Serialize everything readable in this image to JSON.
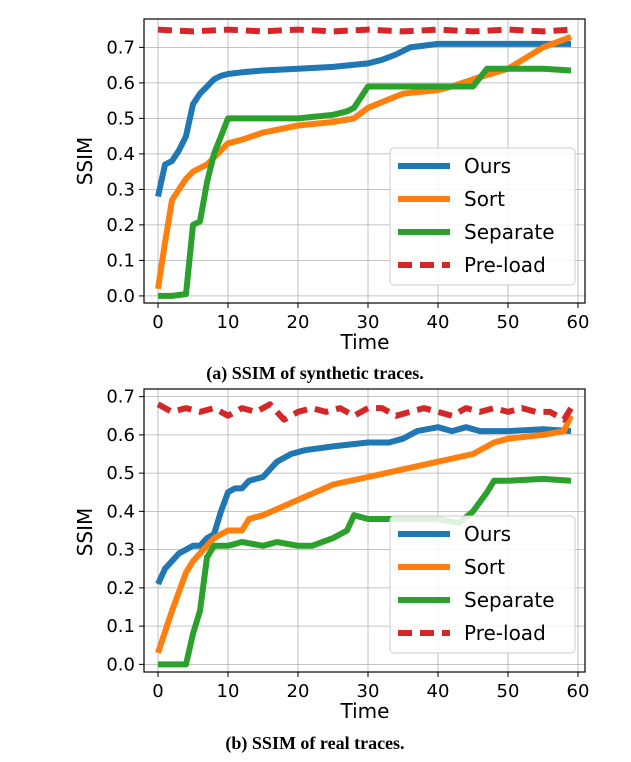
{
  "colors": {
    "ours": "#1f77b4",
    "sort": "#ff7f0e",
    "separate": "#2ca02c",
    "preload": "#d62728",
    "grid": "#b0b0b0"
  },
  "chart_data": [
    {
      "type": "line",
      "caption": "(a) SSIM of synthetic traces.",
      "xlabel": "Time",
      "ylabel": "SSIM",
      "xlim": [
        -2,
        61
      ],
      "ylim": [
        -0.02,
        0.78
      ],
      "xticks": [
        0,
        10,
        20,
        30,
        40,
        50,
        60
      ],
      "yticks": [
        0.0,
        0.1,
        0.2,
        0.3,
        0.4,
        0.5,
        0.6,
        0.7
      ],
      "xtick_labels": [
        "0",
        "10",
        "20",
        "30",
        "40",
        "50",
        "60"
      ],
      "ytick_labels": [
        "0.0",
        "0.1",
        "0.2",
        "0.3",
        "0.4",
        "0.5",
        "0.6",
        "0.7"
      ],
      "grid": true,
      "legend_position": "lower-right",
      "series": [
        {
          "name": "Ours",
          "style": "solid",
          "x": [
            0,
            1,
            2,
            3,
            4,
            5,
            6,
            7,
            8,
            9,
            10,
            12,
            15,
            20,
            25,
            30,
            32,
            34,
            36,
            38,
            40,
            45,
            50,
            55,
            59
          ],
          "values": [
            0.28,
            0.37,
            0.38,
            0.41,
            0.45,
            0.54,
            0.57,
            0.59,
            0.61,
            0.62,
            0.625,
            0.63,
            0.635,
            0.64,
            0.645,
            0.655,
            0.665,
            0.68,
            0.7,
            0.705,
            0.71,
            0.71,
            0.71,
            0.71,
            0.71
          ]
        },
        {
          "name": "Sort",
          "style": "solid",
          "x": [
            0,
            1,
            2,
            3,
            4,
            5,
            6,
            7,
            8,
            9,
            10,
            12,
            15,
            20,
            25,
            28,
            30,
            35,
            40,
            42,
            45,
            50,
            55,
            59
          ],
          "values": [
            0.02,
            0.15,
            0.27,
            0.3,
            0.33,
            0.35,
            0.36,
            0.37,
            0.39,
            0.41,
            0.43,
            0.44,
            0.46,
            0.48,
            0.49,
            0.5,
            0.53,
            0.57,
            0.58,
            0.59,
            0.61,
            0.64,
            0.7,
            0.73
          ]
        },
        {
          "name": "Separate",
          "style": "solid",
          "x": [
            0,
            2,
            4,
            5,
            6,
            7,
            8,
            9,
            10,
            15,
            20,
            25,
            27,
            28,
            30,
            35,
            40,
            45,
            47,
            50,
            55,
            59
          ],
          "values": [
            0.0,
            0.0,
            0.005,
            0.2,
            0.21,
            0.32,
            0.4,
            0.45,
            0.5,
            0.5,
            0.5,
            0.51,
            0.52,
            0.53,
            0.59,
            0.59,
            0.59,
            0.59,
            0.64,
            0.64,
            0.64,
            0.635
          ]
        },
        {
          "name": "Pre-load",
          "style": "dashed",
          "x": [
            0,
            5,
            10,
            15,
            20,
            25,
            30,
            35,
            40,
            45,
            50,
            55,
            59
          ],
          "values": [
            0.75,
            0.745,
            0.75,
            0.745,
            0.75,
            0.745,
            0.75,
            0.745,
            0.75,
            0.745,
            0.75,
            0.745,
            0.75
          ]
        }
      ]
    },
    {
      "type": "line",
      "caption": "(b) SSIM of real traces.",
      "xlabel": "Time",
      "ylabel": "SSIM",
      "xlim": [
        -2,
        61
      ],
      "ylim": [
        -0.02,
        0.72
      ],
      "xticks": [
        0,
        10,
        20,
        30,
        40,
        50,
        60
      ],
      "yticks": [
        0.0,
        0.1,
        0.2,
        0.3,
        0.4,
        0.5,
        0.6,
        0.7
      ],
      "xtick_labels": [
        "0",
        "10",
        "20",
        "30",
        "40",
        "50",
        "60"
      ],
      "ytick_labels": [
        "0.0",
        "0.1",
        "0.2",
        "0.3",
        "0.4",
        "0.5",
        "0.6",
        "0.7"
      ],
      "grid": true,
      "legend_position": "lower-right",
      "series": [
        {
          "name": "Ours",
          "style": "solid",
          "x": [
            0,
            1,
            2,
            3,
            4,
            5,
            6,
            7,
            8,
            9,
            10,
            11,
            12,
            13,
            15,
            17,
            19,
            21,
            25,
            30,
            33,
            35,
            37,
            40,
            42,
            44,
            46,
            50,
            55,
            59
          ],
          "values": [
            0.21,
            0.25,
            0.27,
            0.29,
            0.3,
            0.31,
            0.31,
            0.33,
            0.34,
            0.4,
            0.45,
            0.46,
            0.46,
            0.48,
            0.49,
            0.53,
            0.55,
            0.56,
            0.57,
            0.58,
            0.58,
            0.59,
            0.61,
            0.62,
            0.61,
            0.62,
            0.61,
            0.61,
            0.615,
            0.61
          ]
        },
        {
          "name": "Sort",
          "style": "solid",
          "x": [
            0,
            2,
            4,
            5,
            6,
            7,
            8,
            9,
            10,
            12,
            13,
            15,
            20,
            25,
            30,
            35,
            40,
            45,
            48,
            50,
            55,
            58,
            59
          ],
          "values": [
            0.03,
            0.14,
            0.24,
            0.27,
            0.29,
            0.31,
            0.33,
            0.34,
            0.35,
            0.35,
            0.38,
            0.39,
            0.43,
            0.47,
            0.49,
            0.51,
            0.53,
            0.55,
            0.58,
            0.59,
            0.6,
            0.61,
            0.65
          ]
        },
        {
          "name": "Separate",
          "style": "solid",
          "x": [
            0,
            2,
            4,
            5,
            6,
            7,
            8,
            9,
            10,
            12,
            15,
            17,
            20,
            22,
            25,
            27,
            28,
            30,
            35,
            40,
            43,
            45,
            47,
            48,
            50,
            55,
            59
          ],
          "values": [
            0.0,
            0.0,
            0.0,
            0.08,
            0.14,
            0.28,
            0.31,
            0.31,
            0.31,
            0.32,
            0.31,
            0.32,
            0.31,
            0.31,
            0.33,
            0.35,
            0.39,
            0.38,
            0.38,
            0.38,
            0.37,
            0.4,
            0.45,
            0.48,
            0.48,
            0.485,
            0.48
          ]
        },
        {
          "name": "Pre-load",
          "style": "dashed",
          "x": [
            0,
            2,
            4,
            6,
            8,
            10,
            12,
            14,
            16,
            18,
            20,
            22,
            24,
            26,
            28,
            30,
            32,
            34,
            36,
            38,
            40,
            42,
            44,
            46,
            48,
            50,
            52,
            54,
            56,
            58,
            59
          ],
          "values": [
            0.68,
            0.66,
            0.67,
            0.66,
            0.67,
            0.65,
            0.67,
            0.66,
            0.68,
            0.64,
            0.66,
            0.67,
            0.66,
            0.67,
            0.65,
            0.67,
            0.67,
            0.65,
            0.66,
            0.67,
            0.66,
            0.65,
            0.67,
            0.66,
            0.67,
            0.66,
            0.67,
            0.66,
            0.66,
            0.64,
            0.67
          ]
        }
      ]
    }
  ]
}
